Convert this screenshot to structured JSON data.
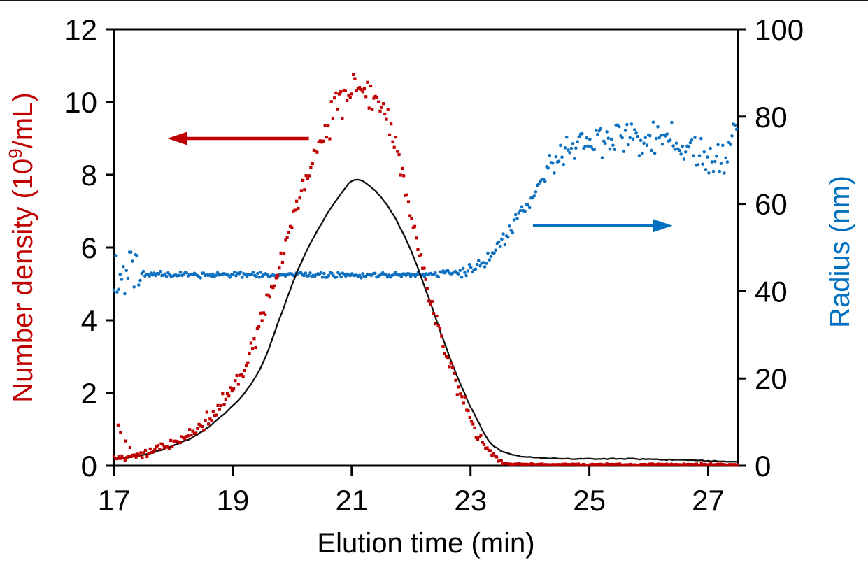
{
  "figure": {
    "background": "#ffffff",
    "top_rule_color": "#1a1a1a"
  },
  "chart_data": {
    "type": "scatter+line",
    "title": "",
    "x_axis": {
      "label": "Elution time (min)",
      "min": 17,
      "max": 27.5,
      "ticks": [
        17,
        19,
        21,
        23,
        25,
        27
      ]
    },
    "y_axis_left": {
      "label_parts": {
        "pre": "Number density (10",
        "sup": "9",
        "post": "/mL)"
      },
      "min": 0,
      "max": 12,
      "ticks": [
        0,
        2,
        4,
        6,
        8,
        10,
        12
      ],
      "color": "#c00000"
    },
    "y_axis_right": {
      "label": "Radius (nm)",
      "min": 0,
      "max": 100,
      "ticks": [
        0,
        20,
        40,
        60,
        80,
        100
      ],
      "color": "#0070c0"
    },
    "grid": false,
    "legend": "none",
    "series": [
      {
        "name": "radius",
        "axis": "right",
        "type": "scatter",
        "marker": "circle",
        "color": "#0e70bf",
        "marker_size": 4.6,
        "sample_step": 0.026,
        "unit": "nm",
        "trend": [
          [
            17,
            44
          ],
          [
            17.5,
            43.9
          ],
          [
            18.5,
            43.8
          ],
          [
            19.5,
            43.8
          ],
          [
            20.5,
            43.7
          ],
          [
            21.5,
            43.7
          ],
          [
            22.3,
            43.9
          ],
          [
            22.8,
            44.3
          ],
          [
            23,
            45
          ],
          [
            23.2,
            46.5
          ],
          [
            23.4,
            49
          ],
          [
            23.6,
            52.5
          ],
          [
            23.8,
            56.5
          ],
          [
            24,
            60.5
          ],
          [
            24.2,
            66
          ],
          [
            24.4,
            70
          ],
          [
            24.6,
            72.5
          ],
          [
            24.8,
            73.5
          ],
          [
            25,
            75
          ],
          [
            25.3,
            74.5
          ],
          [
            25.6,
            75.5
          ],
          [
            25.9,
            74
          ],
          [
            26.2,
            75.5
          ],
          [
            26.5,
            74
          ],
          [
            26.8,
            72.5
          ],
          [
            27.1,
            70.5
          ],
          [
            27.3,
            72
          ],
          [
            27.5,
            78
          ]
        ],
        "noise_regions": [
          [
            17,
            17.45,
            7
          ],
          [
            17.45,
            22.8,
            0.8
          ],
          [
            22.8,
            24.25,
            2.2
          ],
          [
            24.25,
            27.51,
            4.5
          ]
        ],
        "noise_rel": 0
      },
      {
        "name": "number-density",
        "axis": "left",
        "type": "scatter",
        "marker": "square",
        "color": "#c00000",
        "marker_size": 4.2,
        "sample_step": 0.0265,
        "unit": "1e9/mL",
        "trend": [
          [
            17,
            0.2
          ],
          [
            17.4,
            0.3
          ],
          [
            17.8,
            0.5
          ],
          [
            18.2,
            0.8
          ],
          [
            18.6,
            1.3
          ],
          [
            19,
            2.1
          ],
          [
            19.3,
            3.1
          ],
          [
            19.6,
            4.6
          ],
          [
            19.9,
            6.2
          ],
          [
            20.2,
            7.7
          ],
          [
            20.5,
            9
          ],
          [
            20.8,
            10
          ],
          [
            21.1,
            10.45
          ],
          [
            21.4,
            10.05
          ],
          [
            21.7,
            9.1
          ],
          [
            22,
            6.9
          ],
          [
            22.3,
            4.7
          ],
          [
            22.6,
            3.1
          ],
          [
            22.9,
            1.7
          ],
          [
            23.1,
            0.9
          ],
          [
            23.3,
            0.42
          ],
          [
            23.5,
            0.12
          ],
          [
            23.7,
            0.05
          ],
          [
            24.5,
            0.035
          ],
          [
            25.5,
            0.03
          ],
          [
            26.5,
            0.035
          ],
          [
            27.5,
            0.03
          ]
        ],
        "noise_regions": [
          [
            17,
            18.5,
            0.13
          ],
          [
            18.5,
            23.2,
            0.28
          ],
          [
            23.2,
            23.6,
            0.08
          ],
          [
            23.6,
            27.51,
            0.025
          ]
        ],
        "noise_rel": 0.04,
        "outliers": [
          [
            17.07,
            1.12
          ],
          [
            17.11,
            0.92
          ],
          [
            17.2,
            0.68
          ],
          [
            17.27,
            0.5
          ]
        ]
      },
      {
        "name": "fit-line",
        "axis": "left",
        "type": "line",
        "color": "#111111",
        "line_width": 2.3,
        "sample_step": 0.05,
        "wiggle": 0.018,
        "trend": [
          [
            17,
            0.18
          ],
          [
            17.5,
            0.3
          ],
          [
            18,
            0.55
          ],
          [
            18.4,
            0.85
          ],
          [
            18.8,
            1.35
          ],
          [
            19.2,
            2
          ],
          [
            19.5,
            2.8
          ],
          [
            19.8,
            4.1
          ],
          [
            20.1,
            5.4
          ],
          [
            20.4,
            6.4
          ],
          [
            20.7,
            7.2
          ],
          [
            21.05,
            7.87
          ],
          [
            21.4,
            7.55
          ],
          [
            21.7,
            6.9
          ],
          [
            22,
            5.9
          ],
          [
            22.3,
            4.6
          ],
          [
            22.6,
            3.2
          ],
          [
            22.9,
            2
          ],
          [
            23.1,
            1.3
          ],
          [
            23.3,
            0.7
          ],
          [
            23.5,
            0.42
          ],
          [
            23.8,
            0.27
          ],
          [
            24.2,
            0.21
          ],
          [
            24.8,
            0.19
          ],
          [
            25.4,
            0.19
          ],
          [
            26,
            0.18
          ],
          [
            26.6,
            0.16
          ],
          [
            27.1,
            0.13
          ],
          [
            27.5,
            0.1
          ]
        ]
      }
    ],
    "annotations": {
      "arrows": [
        {
          "name": "left-axis-arrow",
          "color": "#c00000",
          "axis": "left",
          "y": 9,
          "x_from": 20.28,
          "x_to": 17.9
        },
        {
          "name": "right-axis-arrow",
          "color": "#0070c0",
          "axis": "right",
          "y": 55,
          "x_from": 24.05,
          "x_to": 26.4
        }
      ]
    }
  }
}
